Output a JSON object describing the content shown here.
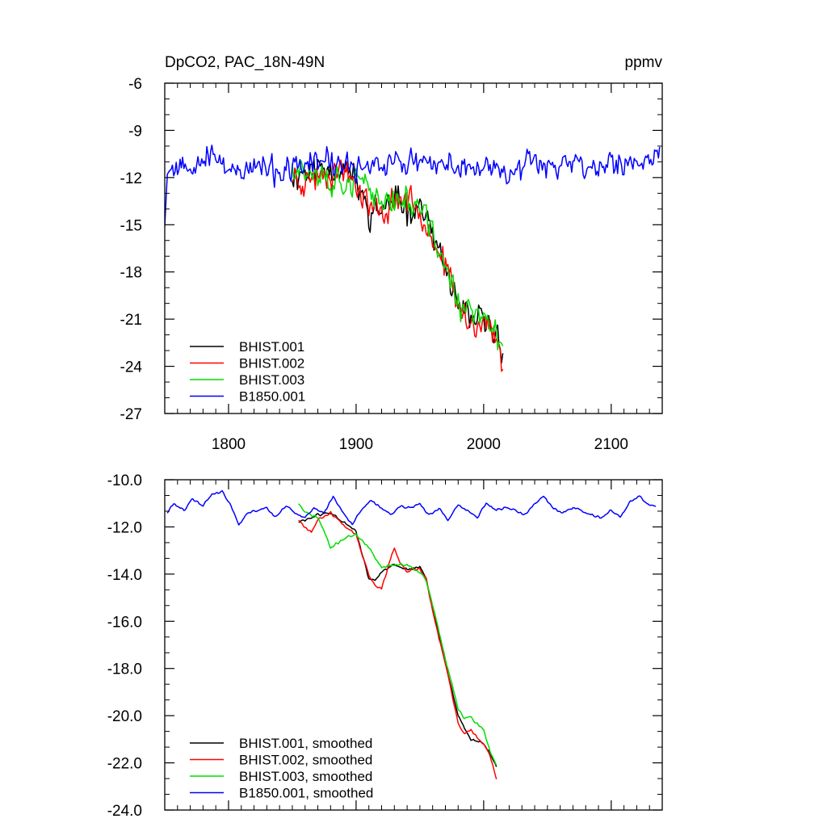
{
  "figure": {
    "title_left": "DpCO2, PAC_18N-49N",
    "title_right": "ppmv"
  },
  "chart_data": [
    {
      "type": "line",
      "title": "DpCO2, PAC_18N-49N",
      "units": "ppmv",
      "xlim": [
        1750,
        2140
      ],
      "ylim": [
        -27,
        -6
      ],
      "xticks": [
        1800,
        1900,
        2000,
        2100
      ],
      "xtick_labels": [
        "1800",
        "1900",
        "2000",
        "2100"
      ],
      "yticks": [
        -27,
        -24,
        -21,
        -18,
        -15,
        -12,
        -9,
        -6
      ],
      "ytick_labels": [
        "-27",
        "-24",
        "-21",
        "-18",
        "-15",
        "-12",
        "-9",
        "-6"
      ],
      "grid": false,
      "legend_position": "bottom-left",
      "series": [
        {
          "name": "BHIST.001",
          "color": "#000000",
          "noise": 0.95,
          "seed": 11,
          "x": [
            1850,
            1870,
            1890,
            1900,
            1910,
            1920,
            1930,
            1940,
            1950,
            1955,
            1960,
            1970,
            1980,
            1990,
            2000,
            2010,
            2015
          ],
          "y": [
            -11.8,
            -11.4,
            -11.3,
            -12.2,
            -14.3,
            -14.0,
            -13.5,
            -13.8,
            -13.8,
            -14.5,
            -15.8,
            -17.8,
            -20.3,
            -21.2,
            -21.0,
            -22.0,
            -22.8
          ]
        },
        {
          "name": "BHIST.002",
          "color": "#ff0000",
          "noise": 0.95,
          "seed": 23,
          "x": [
            1850,
            1860,
            1870,
            1890,
            1900,
            1910,
            1920,
            1930,
            1940,
            1950,
            1955,
            1960,
            1970,
            1980,
            1990,
            2000,
            2010,
            2015
          ],
          "y": [
            -11.9,
            -12.3,
            -11.7,
            -11.5,
            -12.3,
            -13.8,
            -14.5,
            -13.3,
            -13.4,
            -14.1,
            -14.6,
            -15.8,
            -17.6,
            -20.2,
            -21.4,
            -21.1,
            -22.4,
            -23.5
          ]
        },
        {
          "name": "BHIST.003",
          "color": "#00dd00",
          "noise": 0.95,
          "seed": 37,
          "x": [
            1850,
            1860,
            1870,
            1880,
            1890,
            1900,
            1910,
            1920,
            1930,
            1940,
            1950,
            1955,
            1960,
            1970,
            1980,
            1990,
            2000,
            2010,
            2015
          ],
          "y": [
            -11.0,
            -11.6,
            -11.6,
            -12.2,
            -12.3,
            -12.2,
            -12.8,
            -13.4,
            -13.5,
            -13.5,
            -14.0,
            -14.6,
            -15.6,
            -17.6,
            -20.0,
            -20.6,
            -21.0,
            -21.9,
            -22.6
          ]
        },
        {
          "name": "B1850.001",
          "color": "#0000ff",
          "noise": 0.8,
          "seed": 53,
          "x": [
            1750,
            1752,
            1760,
            1770,
            1780,
            1790,
            1800,
            1810,
            1820,
            1830,
            1840,
            1850,
            1860,
            1870,
            1880,
            1890,
            1900,
            1910,
            1920,
            1930,
            1940,
            1950,
            1960,
            1970,
            1980,
            1990,
            2000,
            2010,
            2020,
            2030,
            2040,
            2050,
            2060,
            2070,
            2080,
            2090,
            2100,
            2110,
            2120,
            2130,
            2138
          ],
          "y": [
            -14.6,
            -11.4,
            -11.2,
            -11.0,
            -10.8,
            -10.7,
            -11.2,
            -11.9,
            -11.3,
            -11.5,
            -11.7,
            -11.6,
            -11.2,
            -10.9,
            -11.1,
            -11.3,
            -11.4,
            -11.0,
            -11.2,
            -11.0,
            -11.1,
            -11.0,
            -11.4,
            -11.3,
            -11.2,
            -11.5,
            -11.2,
            -11.3,
            -11.5,
            -11.2,
            -10.8,
            -11.1,
            -11.2,
            -10.9,
            -11.4,
            -11.2,
            -11.0,
            -11.4,
            -10.8,
            -11.2,
            -10.2
          ]
        }
      ]
    },
    {
      "type": "line",
      "xlim": [
        1750,
        2140
      ],
      "ylim": [
        -24,
        -10
      ],
      "xticks": [
        1800,
        1900,
        2000,
        2100
      ],
      "yticks": [
        -24,
        -22,
        -20,
        -18,
        -16,
        -14,
        -12,
        -10
      ],
      "ytick_labels": [
        "-24.0",
        "-22.0",
        "-20.0",
        "-18.0",
        "-16.0",
        "-14.0",
        "-12.0",
        "-10.0"
      ],
      "grid": false,
      "legend_position": "bottom-left",
      "series": [
        {
          "name": "BHIST.001, smoothed",
          "color": "#000000",
          "noise": 0.07,
          "seed": 61,
          "x": [
            1855,
            1870,
            1880,
            1890,
            1900,
            1905,
            1910,
            1915,
            1920,
            1930,
            1940,
            1950,
            1955,
            1960,
            1970,
            1980,
            1990,
            2000,
            2005,
            2010
          ],
          "y": [
            -11.8,
            -11.5,
            -11.4,
            -11.8,
            -12.2,
            -13.2,
            -14.2,
            -14.3,
            -13.9,
            -13.6,
            -13.8,
            -13.7,
            -14.2,
            -15.5,
            -17.8,
            -20.0,
            -21.0,
            -21.2,
            -21.6,
            -22.2
          ]
        },
        {
          "name": "BHIST.002, smoothed",
          "color": "#ff0000",
          "noise": 0.07,
          "seed": 67,
          "x": [
            1855,
            1860,
            1865,
            1870,
            1880,
            1890,
            1900,
            1905,
            1910,
            1915,
            1920,
            1925,
            1930,
            1935,
            1940,
            1950,
            1955,
            1960,
            1970,
            1980,
            1985,
            1990,
            2000,
            2005,
            2010
          ],
          "y": [
            -11.7,
            -12.0,
            -12.2,
            -11.7,
            -11.4,
            -11.9,
            -12.3,
            -13.2,
            -14.0,
            -14.5,
            -14.6,
            -13.7,
            -12.9,
            -13.6,
            -13.9,
            -13.8,
            -14.2,
            -15.6,
            -17.8,
            -20.3,
            -20.8,
            -20.6,
            -21.2,
            -21.7,
            -22.7
          ]
        },
        {
          "name": "BHIST.003, smoothed",
          "color": "#00dd00",
          "noise": 0.07,
          "seed": 71,
          "x": [
            1855,
            1860,
            1870,
            1875,
            1880,
            1890,
            1900,
            1910,
            1920,
            1930,
            1940,
            1950,
            1955,
            1960,
            1970,
            1980,
            1985,
            1990,
            2000,
            2005,
            2010
          ],
          "y": [
            -11.0,
            -11.4,
            -11.6,
            -12.2,
            -12.9,
            -12.5,
            -12.3,
            -12.9,
            -13.7,
            -13.6,
            -13.6,
            -13.9,
            -14.3,
            -15.3,
            -17.6,
            -19.7,
            -20.1,
            -20.1,
            -20.6,
            -21.5,
            -22.1
          ]
        },
        {
          "name": "B1850.001, smoothed",
          "color": "#0000ff",
          "noise": 0.06,
          "seed": 79,
          "x": [
            1752,
            1757,
            1765,
            1772,
            1780,
            1787,
            1795,
            1802,
            1808,
            1815,
            1822,
            1830,
            1837,
            1845,
            1852,
            1860,
            1867,
            1875,
            1882,
            1890,
            1897,
            1905,
            1912,
            1920,
            1927,
            1935,
            1942,
            1950,
            1957,
            1965,
            1972,
            1980,
            1987,
            1995,
            2002,
            2010,
            2017,
            2025,
            2032,
            2040,
            2047,
            2055,
            2062,
            2070,
            2077,
            2085,
            2092,
            2100,
            2107,
            2115,
            2122,
            2130,
            2135
          ],
          "y": [
            -11.4,
            -11.0,
            -11.3,
            -10.8,
            -11.1,
            -10.6,
            -10.5,
            -11.1,
            -11.9,
            -11.4,
            -11.3,
            -11.2,
            -11.6,
            -11.1,
            -11.4,
            -11.6,
            -11.2,
            -11.4,
            -10.7,
            -11.4,
            -11.9,
            -11.2,
            -10.9,
            -11.2,
            -11.5,
            -11.1,
            -11.2,
            -11.0,
            -11.5,
            -11.2,
            -11.7,
            -11.1,
            -11.3,
            -11.6,
            -11.0,
            -11.3,
            -11.2,
            -11.3,
            -11.5,
            -11.0,
            -10.7,
            -11.2,
            -11.4,
            -11.2,
            -11.3,
            -11.5,
            -11.6,
            -11.3,
            -11.6,
            -10.9,
            -10.7,
            -11.1,
            -11.1
          ]
        }
      ]
    }
  ]
}
